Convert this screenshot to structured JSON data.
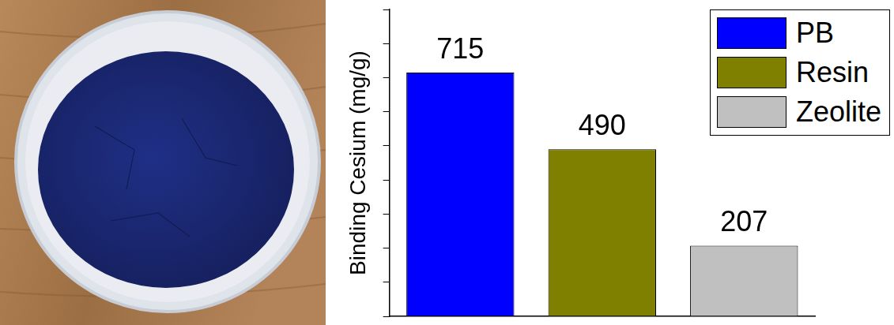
{
  "chart_data": {
    "type": "bar",
    "y_label": "Binding Cesium (mg/g)",
    "categories": [
      "PB",
      "Resin",
      "Zeolite"
    ],
    "values": [
      715,
      490,
      207
    ],
    "colors": [
      "#0000ff",
      "#808000",
      "#c0c0c0"
    ],
    "ylim": [
      0,
      900
    ],
    "yticks": [
      0,
      100,
      200,
      300,
      400,
      500,
      600,
      700,
      800,
      900
    ],
    "grid": false,
    "legend": "upper right",
    "data_labels": true,
    "tick_labels": false
  }
}
